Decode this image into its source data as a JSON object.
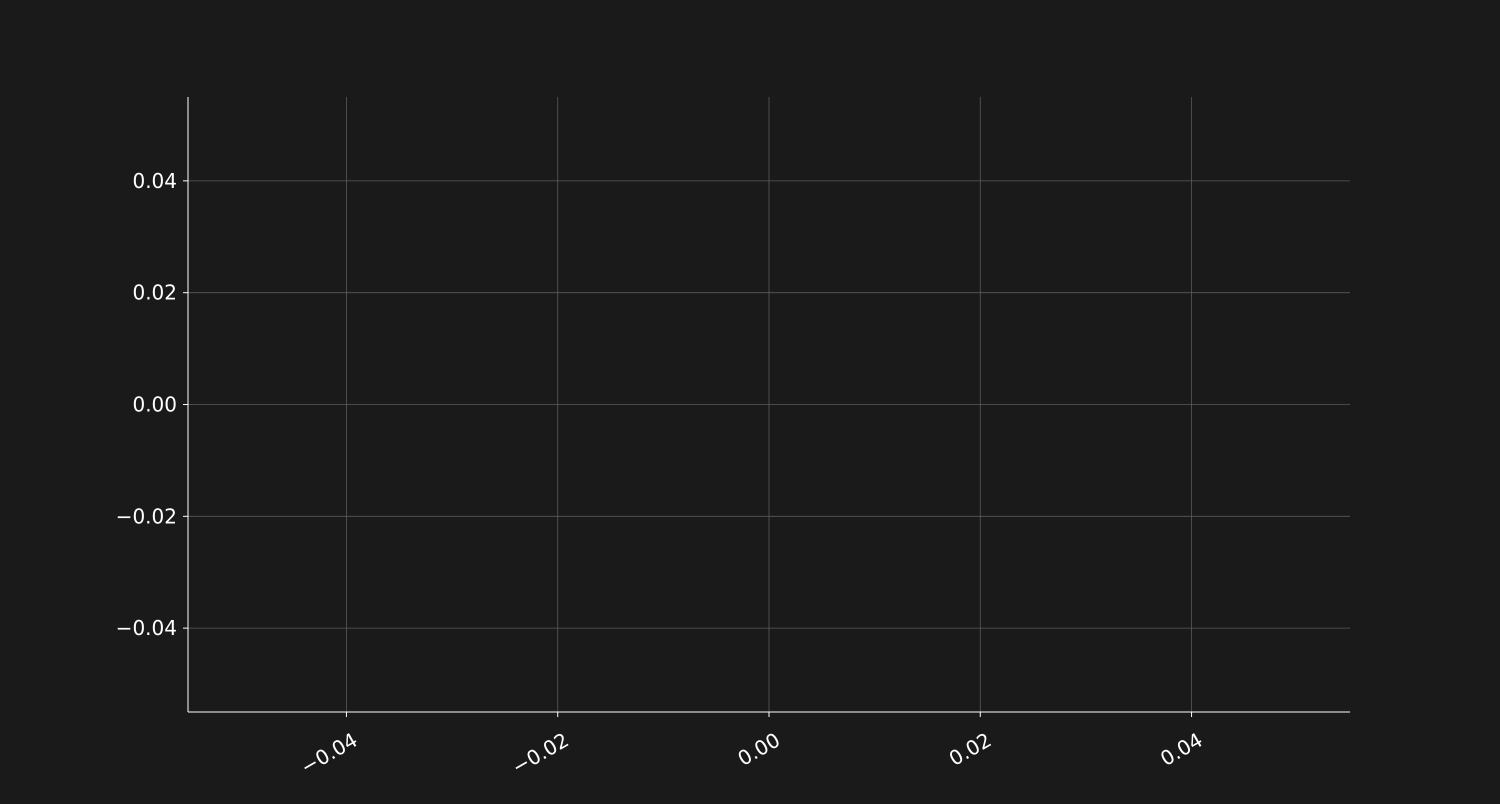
{
  "chart_data": {
    "type": "line",
    "title": "",
    "xlabel": "",
    "ylabel": "",
    "xlim": [
      -0.055,
      0.055
    ],
    "ylim": [
      -0.055,
      0.055
    ],
    "x_ticks": [
      {
        "value": -0.04,
        "label": "−0.04"
      },
      {
        "value": -0.02,
        "label": "−0.02"
      },
      {
        "value": 0.0,
        "label": "0.00"
      },
      {
        "value": 0.02,
        "label": "0.02"
      },
      {
        "value": 0.04,
        "label": "0.04"
      }
    ],
    "y_ticks": [
      {
        "value": 0.04,
        "label": "0.04"
      },
      {
        "value": 0.02,
        "label": "0.02"
      },
      {
        "value": 0.0,
        "label": "0.00"
      },
      {
        "value": -0.02,
        "label": "−0.02"
      },
      {
        "value": -0.04,
        "label": "−0.04"
      }
    ],
    "x_tick_rotation": "30 degrees",
    "grid": true,
    "series": [],
    "colors": {
      "background": "#1a1a1a",
      "axis": "#ffffff",
      "grid": "#5a5a5a",
      "tick_label": "#ffffff"
    }
  }
}
